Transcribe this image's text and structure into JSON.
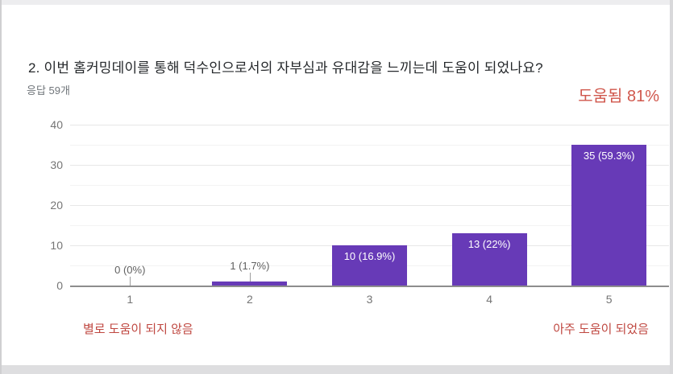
{
  "question": {
    "title": "2. 이번 홈커밍데이를 통해 덕수인으로서의 자부심과 유대감을 느끼는데 도움이 되었나요?",
    "response_count": "응답 59개"
  },
  "annotations": {
    "summary": "도움됨 81%",
    "summary_color": "#d0574c",
    "scale_min_label": "별로 도움이 되지 않음",
    "scale_max_label": "아주 도움이 되었음",
    "scale_label_color": "#bf4740"
  },
  "chart_data": {
    "type": "bar",
    "title": "",
    "xlabel": "",
    "ylabel": "",
    "categories": [
      "1",
      "2",
      "3",
      "4",
      "5"
    ],
    "values": [
      0,
      1,
      10,
      13,
      35
    ],
    "percentages": [
      0,
      1.7,
      16.9,
      22,
      59.3
    ],
    "bar_labels": [
      "0 (0%)",
      "1 (1.7%)",
      "10 (16.9%)",
      "13 (22%)",
      "35 (59.3%)"
    ],
    "total_responses": 59,
    "y_ticks": [
      0,
      10,
      20,
      30,
      40
    ],
    "ylim": [
      0,
      40
    ],
    "grid": true,
    "minor_grid": true,
    "legend": "none",
    "bar_color": "#673ab7",
    "axis_label_color": "#757575"
  }
}
